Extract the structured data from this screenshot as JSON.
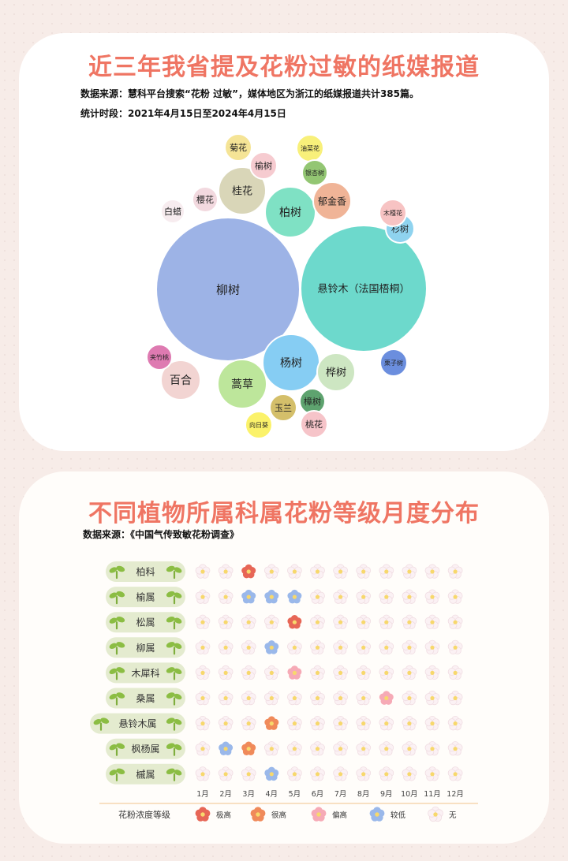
{
  "chart_data": [
    {
      "type": "bubble",
      "title": "近三年我省提及花粉过敏的纸媒报道",
      "subtitle_lines": [
        "数据来源：慧科平台搜索“花粉 过敏”，媒体地区为浙江的纸媒报道共计385篇。",
        "统计时段：2021年4月15日至2024年4月15日"
      ],
      "bubbles": [
        {
          "label": "柳树",
          "color": "#9db3e6"
        },
        {
          "label": "悬铃木（法国梧桐）",
          "color": "#6dd9cc"
        },
        {
          "label": "柏树",
          "color": "#7fe1c4"
        },
        {
          "label": "杨树",
          "color": "#86cdf3"
        },
        {
          "label": "桂花",
          "color": "#d9d6b8"
        },
        {
          "label": "蒿草",
          "color": "#bde69b"
        },
        {
          "label": "桦树",
          "color": "#cde6c2"
        },
        {
          "label": "百合",
          "color": "#f2d4d2"
        },
        {
          "label": "郁金香",
          "color": "#f0b497"
        },
        {
          "label": "菊花",
          "color": "#f5e496"
        },
        {
          "label": "樱花",
          "color": "#f2d9df"
        },
        {
          "label": "白蜡",
          "color": "#f7ecef"
        },
        {
          "label": "榆树",
          "color": "#f6cbd0"
        },
        {
          "label": "杉树",
          "color": "#8fd3ef"
        },
        {
          "label": "玉兰",
          "color": "#d4bf6a"
        },
        {
          "label": "樟树",
          "color": "#5ea36f"
        },
        {
          "label": "桃花",
          "color": "#f6c4c9"
        },
        {
          "label": "木槿花",
          "color": "#f7c3c3"
        },
        {
          "label": "油菜花",
          "color": "#f8f07a"
        },
        {
          "label": "银杏树",
          "color": "#93c673"
        },
        {
          "label": "夹竹桃",
          "color": "#de7ab1"
        },
        {
          "label": "栗子树",
          "color": "#6b8ede"
        },
        {
          "label": "向日葵",
          "color": "#fbf26a"
        }
      ]
    },
    {
      "type": "heatmap",
      "title": "不同植物所属科属花粉等级月度分布",
      "source": "数据来源：《中国气传致敏花粉调查》",
      "months": [
        "1月",
        "2月",
        "3月",
        "4月",
        "5月",
        "6月",
        "7月",
        "8月",
        "9月",
        "10月",
        "11月",
        "12月"
      ],
      "rows": [
        "柏科",
        "榆属",
        "松属",
        "柳属",
        "木犀科",
        "桑属",
        "悬铃木属",
        "枫杨属",
        "槭属"
      ],
      "values": [
        [
          4,
          4,
          0,
          4,
          4,
          4,
          4,
          4,
          4,
          4,
          4,
          4
        ],
        [
          4,
          4,
          3,
          3,
          3,
          4,
          4,
          4,
          4,
          4,
          4,
          4
        ],
        [
          4,
          4,
          4,
          4,
          0,
          4,
          4,
          4,
          4,
          4,
          4,
          4
        ],
        [
          4,
          4,
          4,
          3,
          4,
          4,
          4,
          4,
          4,
          4,
          4,
          4
        ],
        [
          4,
          4,
          4,
          4,
          2,
          4,
          4,
          4,
          4,
          4,
          4,
          4
        ],
        [
          4,
          4,
          4,
          4,
          4,
          4,
          4,
          4,
          2,
          4,
          4,
          4
        ],
        [
          4,
          4,
          4,
          1,
          4,
          4,
          4,
          4,
          4,
          4,
          4,
          4
        ],
        [
          4,
          3,
          1,
          4,
          4,
          4,
          4,
          4,
          4,
          4,
          4,
          4
        ],
        [
          4,
          4,
          4,
          3,
          4,
          4,
          4,
          4,
          4,
          4,
          4,
          4
        ]
      ],
      "legend_title": "花粉浓度等级",
      "levels": [
        {
          "name": "极高",
          "color": "#e76656"
        },
        {
          "name": "很高",
          "color": "#f08a5a"
        },
        {
          "name": "偏高",
          "color": "#f6aab6"
        },
        {
          "name": "较低",
          "color": "#9ab8ea"
        },
        {
          "name": "无",
          "color": "#fbf1f4"
        }
      ]
    }
  ]
}
